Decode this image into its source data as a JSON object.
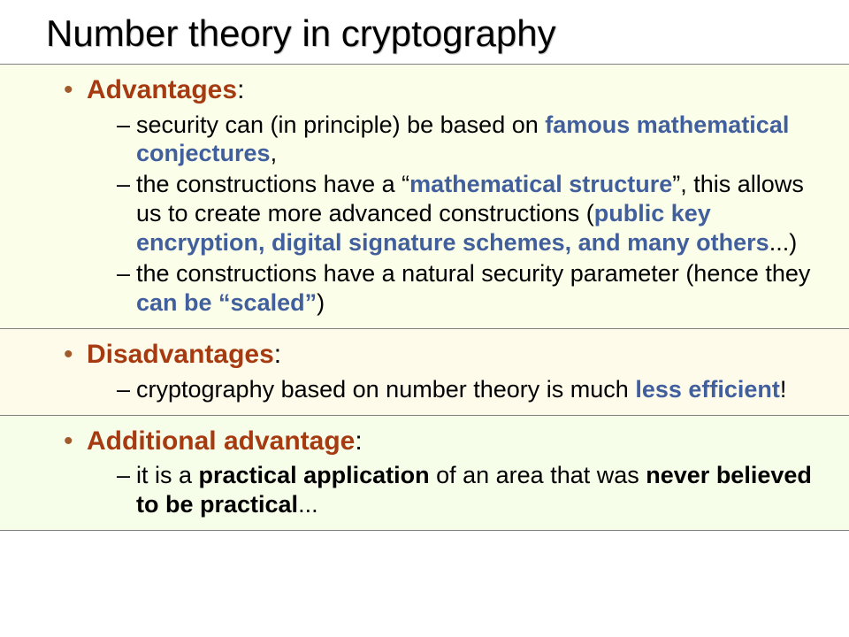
{
  "title": "Number theory in cryptography",
  "colors": {
    "heading_color": "#a63a11",
    "bullet_color": "#a05a2c",
    "emphasis_blue": "#415f9c",
    "section_bg_1": "#fbfee9",
    "section_bg_2": "#fefbeb",
    "section_bg_3": "#f6feea",
    "border_color": "#808080"
  },
  "typography": {
    "title_fontsize": 42,
    "heading_fontsize": 30,
    "body_fontsize": 27,
    "font_family": "Arial"
  },
  "sections": [
    {
      "heading": "Advantages",
      "heading_suffix": ":",
      "items": [
        {
          "pre": "security can (in principle) be based on ",
          "em": "famous mathematical conjectures",
          "post": ","
        },
        {
          "pre": "the constructions have a “",
          "em": "mathematical structure",
          "mid": "”, this allows us to create more advanced constructions (",
          "em2": "public key encryption, digital signature schemes, and many others",
          "post": "...)"
        },
        {
          "pre": "the constructions have a natural security parameter (hence they ",
          "em": "can be “scaled”",
          "post": ")"
        }
      ]
    },
    {
      "heading": "Disadvantages",
      "heading_suffix": ":",
      "items": [
        {
          "pre": "cryptography based on number theory is much ",
          "em": "less efficient",
          "post": "!"
        }
      ]
    },
    {
      "heading": "Additional advantage",
      "heading_suffix": ":",
      "items": [
        {
          "pre": "it is a ",
          "bold": "practical application",
          "mid": " of an area that was ",
          "bold2": "never believed to be practical",
          "post": "..."
        }
      ]
    }
  ]
}
